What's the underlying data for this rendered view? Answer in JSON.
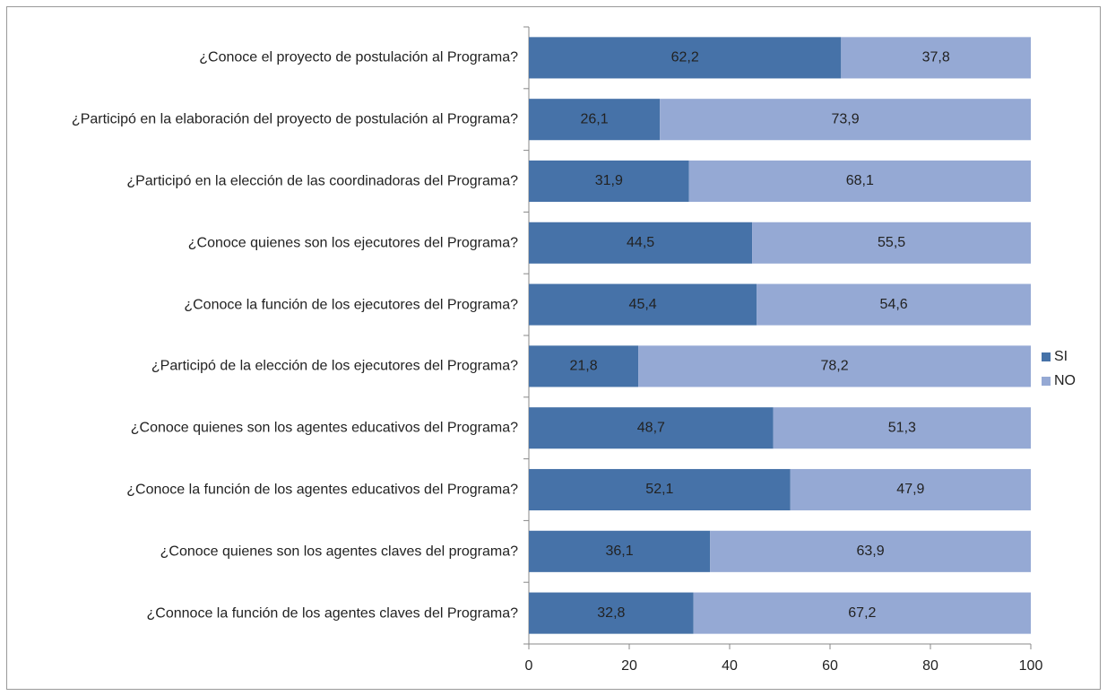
{
  "chart_data": {
    "type": "stacked_barh",
    "categories": [
      "¿Conoce el proyecto de postulación al Programa?",
      "¿Participó en la elaboración del proyecto de postulación al Programa?",
      "¿Participó en la elección de las coordinadoras del Programa?",
      "¿Conoce quienes son los ejecutores del Programa?",
      "¿Conoce la función de los ejecutores del Programa?",
      "¿Participó de la elección de los ejecutores del Programa?",
      "¿Conoce quienes son los agentes educativos del Programa?",
      "¿Conoce la función de los agentes educativos del Programa?",
      "¿Conoce quienes son los agentes claves del programa?",
      "¿Connoce la función de los agentes claves del Programa?"
    ],
    "series": [
      {
        "name": "SI",
        "color": "#4672a8",
        "values": [
          62.2,
          26.1,
          31.9,
          44.5,
          45.4,
          21.8,
          48.7,
          52.1,
          36.1,
          32.8
        ],
        "value_labels": [
          "62,2",
          "26,1",
          "31,9",
          "44,5",
          "45,4",
          "21,8",
          "48,7",
          "52,1",
          "36,1",
          "32,8"
        ]
      },
      {
        "name": "NO",
        "color": "#95a9d4",
        "values": [
          37.8,
          73.9,
          68.1,
          55.5,
          54.6,
          78.2,
          51.3,
          47.9,
          63.9,
          67.2
        ],
        "value_labels": [
          "37,8",
          "73,9",
          "68,1",
          "55,5",
          "54,6",
          "78,2",
          "51,3",
          "47,9",
          "63,9",
          "67,2"
        ]
      }
    ],
    "xlim": [
      0,
      100
    ],
    "xticks": [
      0,
      20,
      40,
      60,
      80,
      100
    ],
    "legend": "right"
  }
}
